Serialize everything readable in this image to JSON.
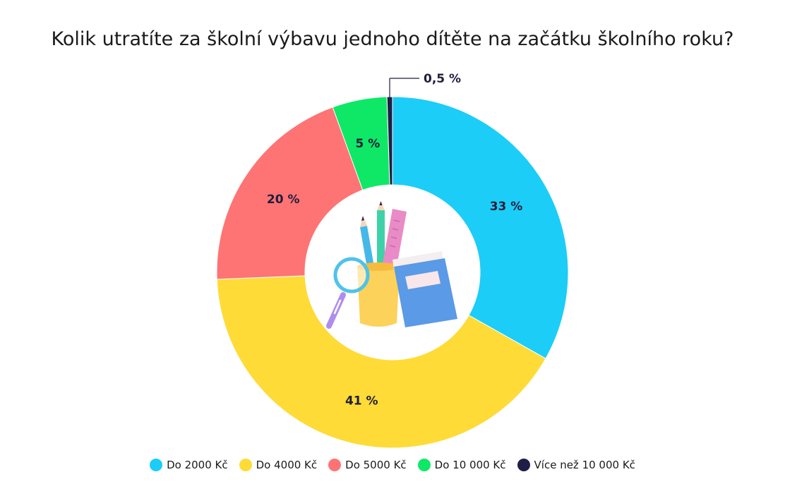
{
  "chart_data": {
    "type": "pie",
    "title": "Kolik utratíte za školní výbavu jednoho dítěte na začátku školního roku?",
    "slices": [
      {
        "name": "Do 2000 Kč",
        "value": 33,
        "label": "33 %",
        "color": "#1ccdf7"
      },
      {
        "name": "Do 4000 Kč",
        "value": 41,
        "label": "41 %",
        "color": "#fedb37"
      },
      {
        "name": "Do 5000 Kč",
        "value": 20,
        "label": "20 %",
        "color": "#fe7474"
      },
      {
        "name": "Do 10 000 Kč",
        "value": 5,
        "label": "5 %",
        "color": "#0ee866"
      },
      {
        "name": "Více než 10 000 Kč",
        "value": 0.5,
        "label": "0,5 %",
        "color": "#1e1e48"
      }
    ],
    "legend_position": "bottom",
    "donut": true
  },
  "icons": {
    "center": "school-supplies-icon"
  }
}
